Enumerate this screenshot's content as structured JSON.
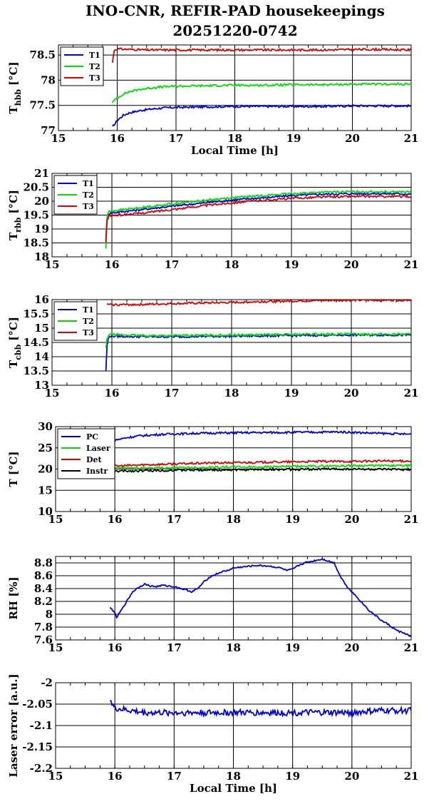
{
  "page": {
    "title_line1": "INO-CNR, REFIR-PAD housekeepings",
    "title_line2": "20251220-0742"
  },
  "colors": {
    "blue": "#0000dd",
    "green": "#00dd00",
    "red": "#dd0000",
    "black": "#000000"
  },
  "chart_data": [
    {
      "type": "line",
      "ylabel_main": "T",
      "ylabel_sub": "hbb",
      "ylabel_unit": "[°C]",
      "xlabel": "Local Time [h]",
      "xlim": [
        15,
        21
      ],
      "ylim": [
        77,
        78.7
      ],
      "xticks": [
        "15",
        "16",
        "17",
        "18",
        "19",
        "20",
        "21"
      ],
      "yticks": [
        "77",
        "77.5",
        "78",
        "78.5"
      ],
      "ytick_values": [
        77,
        77.5,
        78,
        78.5
      ],
      "grid": true,
      "legend_position": "top-left",
      "series": [
        {
          "name": "T1",
          "color": "blue",
          "x": [
            15.92,
            16.0,
            16.1,
            16.2,
            16.4,
            16.6,
            16.8,
            17.0,
            17.5,
            18.0,
            18.5,
            19.0,
            19.5,
            20.0,
            20.5,
            21.0
          ],
          "y": [
            77.07,
            77.2,
            77.3,
            77.35,
            77.4,
            77.43,
            77.45,
            77.46,
            77.47,
            77.48,
            77.48,
            77.48,
            77.48,
            77.49,
            77.49,
            77.49
          ]
        },
        {
          "name": "T2",
          "color": "green",
          "x": [
            15.92,
            16.0,
            16.1,
            16.2,
            16.4,
            16.6,
            16.8,
            17.0,
            17.5,
            18.0,
            18.5,
            19.0,
            19.5,
            20.0,
            20.5,
            21.0
          ],
          "y": [
            77.56,
            77.65,
            77.72,
            77.77,
            77.82,
            77.85,
            77.87,
            77.88,
            77.89,
            77.9,
            77.9,
            77.91,
            77.91,
            77.92,
            77.92,
            77.92
          ]
        },
        {
          "name": "T3",
          "color": "red",
          "x": [
            15.92,
            15.95,
            16.0,
            16.5,
            17.0,
            17.5,
            18.0,
            18.5,
            19.0,
            19.5,
            20.0,
            20.5,
            21.0
          ],
          "y": [
            78.35,
            78.6,
            78.62,
            78.6,
            78.6,
            78.6,
            78.6,
            78.6,
            78.6,
            78.6,
            78.61,
            78.61,
            78.6
          ]
        }
      ]
    },
    {
      "type": "line",
      "ylabel_main": "T",
      "ylabel_sub": "rbb",
      "ylabel_unit": "[°C]",
      "xlabel": "",
      "xlim": [
        15,
        21
      ],
      "ylim": [
        18,
        21
      ],
      "xticks": [
        "15",
        "16",
        "17",
        "18",
        "19",
        "20",
        "21"
      ],
      "yticks": [
        "18",
        "18.5",
        "19",
        "19.5",
        "20",
        "20.5",
        "21"
      ],
      "ytick_values": [
        18,
        18.5,
        19,
        19.5,
        20,
        20.5,
        21
      ],
      "grid": true,
      "legend_position": "top-left",
      "series": [
        {
          "name": "T1",
          "color": "blue",
          "x": [
            15.9,
            15.92,
            15.95,
            16.0,
            16.5,
            17.0,
            17.5,
            18.0,
            18.5,
            19.0,
            19.5,
            20.0,
            20.5,
            21.0
          ],
          "y": [
            18.6,
            19.4,
            19.55,
            19.58,
            19.7,
            19.82,
            19.93,
            20.04,
            20.12,
            20.2,
            20.25,
            20.27,
            20.27,
            20.26
          ]
        },
        {
          "name": "T2",
          "color": "green",
          "x": [
            15.9,
            15.92,
            15.95,
            16.0,
            16.5,
            17.0,
            17.5,
            18.0,
            18.5,
            19.0,
            19.5,
            20.0,
            20.5,
            21.0
          ],
          "y": [
            18.3,
            19.45,
            19.62,
            19.65,
            19.77,
            19.9,
            20.02,
            20.12,
            20.2,
            20.27,
            20.32,
            20.34,
            20.34,
            20.33
          ]
        },
        {
          "name": "T3",
          "color": "red",
          "x": [
            15.9,
            15.92,
            15.95,
            16.0,
            16.5,
            17.0,
            17.5,
            18.0,
            18.5,
            19.0,
            19.5,
            20.0,
            20.5,
            21.0
          ],
          "y": [
            18.5,
            19.3,
            19.47,
            19.48,
            19.57,
            19.7,
            19.83,
            19.94,
            20.03,
            20.1,
            20.15,
            20.17,
            20.17,
            20.17
          ]
        }
      ]
    },
    {
      "type": "line",
      "ylabel_main": "T",
      "ylabel_sub": "cbb",
      "ylabel_unit": "[°C]",
      "xlabel": "",
      "xlim": [
        15,
        21
      ],
      "ylim": [
        13,
        16
      ],
      "xticks": [
        "15",
        "16",
        "17",
        "18",
        "19",
        "20",
        "21"
      ],
      "yticks": [
        "13",
        "13.5",
        "14",
        "14.5",
        "15",
        "15.5",
        "16"
      ],
      "ytick_values": [
        13,
        13.5,
        14,
        14.5,
        15,
        15.5,
        16
      ],
      "grid": true,
      "legend_position": "top-left",
      "series": [
        {
          "name": "T1",
          "color": "blue",
          "x": [
            15.9,
            15.92,
            15.95,
            16.0,
            16.5,
            17.0,
            17.5,
            18.0,
            18.5,
            19.0,
            19.5,
            20.0,
            20.5,
            21.0
          ],
          "y": [
            13.5,
            14.4,
            14.72,
            14.72,
            14.7,
            14.7,
            14.71,
            14.72,
            14.73,
            14.74,
            14.75,
            14.76,
            14.76,
            14.76
          ]
        },
        {
          "name": "T2",
          "color": "green",
          "x": [
            15.9,
            15.92,
            15.95,
            16.0,
            16.5,
            17.0,
            17.5,
            18.0,
            18.5,
            19.0,
            19.5,
            20.0,
            20.5,
            21.0
          ],
          "y": [
            14.3,
            14.6,
            14.78,
            14.78,
            14.74,
            14.74,
            14.75,
            14.76,
            14.77,
            14.78,
            14.79,
            14.79,
            14.79,
            14.79
          ]
        },
        {
          "name": "T3",
          "color": "red",
          "x": [
            15.92,
            16.0,
            16.5,
            17.0,
            17.5,
            18.0,
            18.5,
            19.0,
            19.5,
            20.0,
            20.5,
            21.0
          ],
          "y": [
            15.84,
            15.82,
            15.83,
            15.86,
            15.88,
            15.9,
            15.93,
            15.95,
            15.97,
            15.98,
            15.98,
            15.99
          ]
        }
      ]
    },
    {
      "type": "line",
      "ylabel_main": "T [°C]",
      "ylabel_sub": "",
      "ylabel_unit": "",
      "xlabel": "",
      "xlim": [
        15,
        21
      ],
      "ylim": [
        10,
        30
      ],
      "xticks": [
        "15",
        "16",
        "17",
        "18",
        "19",
        "20",
        "21"
      ],
      "yticks": [
        "10",
        "15",
        "20",
        "25",
        "30"
      ],
      "ytick_values": [
        10,
        15,
        20,
        25,
        30
      ],
      "grid": true,
      "legend_position": "top-left",
      "series": [
        {
          "name": "PC",
          "color": "blue",
          "x": [
            15.92,
            16.0,
            16.2,
            16.4,
            16.7,
            17.0,
            17.5,
            18.0,
            18.5,
            19.0,
            19.5,
            19.8,
            20.0,
            20.5,
            21.0
          ],
          "y": [
            26.2,
            26.8,
            27.4,
            27.8,
            28.1,
            28.3,
            28.45,
            28.55,
            28.6,
            28.65,
            28.7,
            28.75,
            28.65,
            28.4,
            28.2
          ]
        },
        {
          "name": "Laser",
          "color": "green",
          "x": [
            15.92,
            16.0,
            16.5,
            17.0,
            17.5,
            18.0,
            18.5,
            19.0,
            19.5,
            20.0,
            20.5,
            21.0
          ],
          "y": [
            20.3,
            20.3,
            20.3,
            20.3,
            20.4,
            20.5,
            20.5,
            20.6,
            20.7,
            20.8,
            20.8,
            20.8
          ]
        },
        {
          "name": "Det",
          "color": "red",
          "x": [
            15.92,
            16.0,
            16.5,
            17.0,
            17.5,
            18.0,
            18.5,
            19.0,
            19.5,
            20.0,
            20.5,
            21.0
          ],
          "y": [
            20.6,
            20.7,
            21.0,
            21.2,
            21.4,
            21.5,
            21.6,
            21.7,
            21.8,
            21.8,
            21.9,
            21.9
          ]
        },
        {
          "name": "Instr",
          "color": "black",
          "x": [
            15.92,
            16.0,
            16.5,
            17.0,
            17.5,
            18.0,
            18.5,
            19.0,
            19.5,
            20.0,
            20.5,
            21.0
          ],
          "y": [
            19.5,
            19.5,
            19.6,
            19.7,
            19.8,
            19.8,
            19.9,
            19.9,
            20.0,
            20.0,
            19.9,
            19.9
          ]
        }
      ]
    },
    {
      "type": "line",
      "ylabel_main": "RH [%]",
      "ylabel_sub": "",
      "ylabel_unit": "",
      "xlabel": "",
      "xlim": [
        15,
        21
      ],
      "ylim": [
        7.6,
        8.9
      ],
      "xticks": [
        "15",
        "16",
        "17",
        "18",
        "19",
        "20",
        "21"
      ],
      "yticks": [
        "7.6",
        "7.8",
        "8",
        "8.2",
        "8.4",
        "8.6",
        "8.8"
      ],
      "ytick_values": [
        7.6,
        7.8,
        8.0,
        8.2,
        8.4,
        8.6,
        8.8
      ],
      "grid": true,
      "legend_position": "none",
      "series": [
        {
          "name": "",
          "color": "blue",
          "x": [
            15.92,
            15.98,
            16.03,
            16.1,
            16.2,
            16.3,
            16.4,
            16.5,
            16.6,
            16.7,
            16.8,
            17.0,
            17.2,
            17.3,
            17.4,
            17.5,
            17.6,
            17.7,
            17.8,
            17.9,
            18.0,
            18.2,
            18.4,
            18.6,
            18.8,
            18.9,
            19.0,
            19.1,
            19.2,
            19.3,
            19.4,
            19.5,
            19.6,
            19.7,
            19.75,
            19.8,
            19.9,
            20.0,
            20.1,
            20.2,
            20.3,
            20.4,
            20.5,
            20.6,
            20.7,
            20.8,
            20.9,
            21.0
          ],
          "y": [
            8.1,
            8.05,
            7.95,
            8.05,
            8.2,
            8.35,
            8.42,
            8.47,
            8.44,
            8.43,
            8.45,
            8.43,
            8.38,
            8.35,
            8.4,
            8.5,
            8.58,
            8.62,
            8.66,
            8.68,
            8.72,
            8.74,
            8.76,
            8.75,
            8.72,
            8.68,
            8.7,
            8.76,
            8.8,
            8.82,
            8.84,
            8.86,
            8.83,
            8.8,
            8.7,
            8.6,
            8.45,
            8.35,
            8.25,
            8.15,
            8.05,
            7.98,
            7.9,
            7.85,
            7.78,
            7.73,
            7.7,
            7.65
          ]
        }
      ]
    },
    {
      "type": "line",
      "ylabel_main": "Laser error [a.u.]",
      "ylabel_sub": "",
      "ylabel_unit": "",
      "xlabel": "Local Time [h]",
      "xlim": [
        15,
        21
      ],
      "ylim": [
        -2.2,
        -2.0
      ],
      "xticks": [
        "15",
        "16",
        "17",
        "18",
        "19",
        "20",
        "21"
      ],
      "yticks": [
        "-2.2",
        "-2.15",
        "-2.1",
        "-2.05",
        "-2"
      ],
      "ytick_values": [
        -2.2,
        -2.15,
        -2.1,
        -2.05,
        -2.0
      ],
      "grid": true,
      "legend_position": "none",
      "series": [
        {
          "name": "",
          "color": "blue",
          "x": [
            15.92,
            15.95,
            16.0,
            16.5,
            17.0,
            17.5,
            18.0,
            18.5,
            19.0,
            19.5,
            20.0,
            20.5,
            21.0
          ],
          "y": [
            -2.035,
            -2.05,
            -2.06,
            -2.07,
            -2.07,
            -2.07,
            -2.07,
            -2.07,
            -2.07,
            -2.07,
            -2.07,
            -2.065,
            -2.065
          ]
        }
      ]
    }
  ]
}
